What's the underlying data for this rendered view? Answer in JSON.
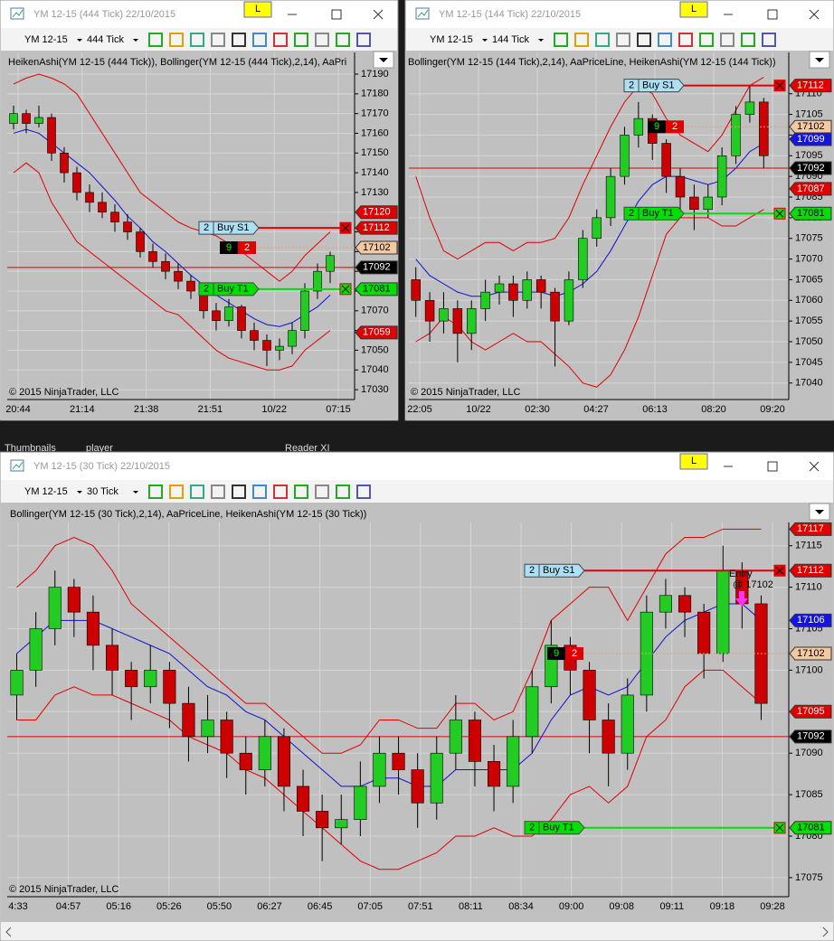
{
  "windows": [
    {
      "title": "YM 12-15 (444 Tick)  22/10/2015",
      "badge": "L",
      "instrument": "YM 12-15",
      "interval": "444 Tick",
      "indicators": "HeikenAshi(YM 12-15 (444 Tick)), Bollinger(YM 12-15 (444 Tick),2,14), AaPri",
      "ylim": [
        17025,
        17201
      ],
      "yticks": [
        17030,
        17040,
        17050,
        17060,
        17070,
        17080,
        17090,
        17100,
        17110,
        17120,
        17130,
        17140,
        17150,
        17160,
        17170,
        17180,
        17190
      ],
      "times": [
        "20:44",
        "21:14",
        "21:38",
        "21:51",
        "10/22",
        "07:15"
      ],
      "copyright": "© 2015 NinjaTrader, LLC",
      "candles": [
        [
          17165,
          17174,
          17162,
          17170
        ],
        [
          17170,
          17172,
          17160,
          17165
        ],
        [
          17165,
          17174,
          17163,
          17168
        ],
        [
          17168,
          17170,
          17146,
          17150
        ],
        [
          17150,
          17153,
          17135,
          17140
        ],
        [
          17140,
          17143,
          17126,
          17130
        ],
        [
          17130,
          17134,
          17120,
          17125
        ],
        [
          17125,
          17130,
          17117,
          17120
        ],
        [
          17120,
          17124,
          17110,
          17115
        ],
        [
          17115,
          17119,
          17106,
          17110
        ],
        [
          17110,
          17112,
          17097,
          17100
        ],
        [
          17100,
          17104,
          17092,
          17095
        ],
        [
          17095,
          17099,
          17086,
          17090
        ],
        [
          17090,
          17094,
          17081,
          17085
        ],
        [
          17085,
          17088,
          17076,
          17080
        ],
        [
          17080,
          17082,
          17066,
          17070
        ],
        [
          17070,
          17074,
          17060,
          17065
        ],
        [
          17065,
          17076,
          17062,
          17072
        ],
        [
          17072,
          17073,
          17056,
          17060
        ],
        [
          17060,
          17064,
          17050,
          17055
        ],
        [
          17055,
          17058,
          17042,
          17050
        ],
        [
          17050,
          17056,
          17045,
          17052
        ],
        [
          17052,
          17064,
          17048,
          17060
        ],
        [
          17060,
          17084,
          17056,
          17080
        ],
        [
          17080,
          17094,
          17076,
          17090
        ],
        [
          17090,
          17100,
          17084,
          17098
        ]
      ],
      "upper": [
        17185,
        17188,
        17190,
        17188,
        17185,
        17180,
        17170,
        17160,
        17150,
        17140,
        17130,
        17125,
        17120,
        17115,
        17112,
        17110,
        17108,
        17104,
        17100,
        17095,
        17090,
        17085,
        17090,
        17098,
        17104,
        17110
      ],
      "middle": [
        17160,
        17162,
        17160,
        17155,
        17150,
        17145,
        17140,
        17133,
        17126,
        17118,
        17112,
        17105,
        17100,
        17094,
        17088,
        17083,
        17078,
        17074,
        17070,
        17066,
        17063,
        17062,
        17064,
        17068,
        17072,
        17078
      ],
      "lower": [
        17140,
        17145,
        17140,
        17125,
        17115,
        17105,
        17100,
        17095,
        17090,
        17085,
        17080,
        17075,
        17070,
        17068,
        17062,
        17056,
        17050,
        17046,
        17044,
        17042,
        17040,
        17040,
        17042,
        17050,
        17055,
        17060
      ],
      "tags": [
        {
          "value": 17120,
          "color": "red"
        },
        {
          "value": 17112,
          "color": "red"
        },
        {
          "value": 17102,
          "color": "tan"
        },
        {
          "value": 17092,
          "color": "black"
        },
        {
          "value": 17081,
          "color": "green"
        },
        {
          "value": 17059,
          "color": "red"
        }
      ],
      "orders": [
        {
          "qty": 2,
          "label": "Buy S1",
          "price": 17112
        },
        {
          "qty": 2,
          "label": "Buy T1",
          "price": 17081
        }
      ],
      "entry": {
        "qty": 9,
        "count": 2,
        "price": 17102
      },
      "price_line": 17092
    },
    {
      "title": "YM 12-15 (144 Tick)  22/10/2015",
      "badge": "L",
      "instrument": "YM 12-15",
      "interval": "144 Tick",
      "indicators": "Bollinger(YM 12-15 (144 Tick),2,14), AaPriceLine, HeikenAshi(YM 12-15 (144 Tick))",
      "ylim": [
        17036,
        17120
      ],
      "yticks": [
        17040,
        17045,
        17050,
        17055,
        17060,
        17065,
        17070,
        17075,
        17080,
        17085,
        17090,
        17095,
        17100,
        17105,
        17110
      ],
      "times": [
        "22:05",
        "10/22",
        "02:30",
        "04:27",
        "06:13",
        "08:20",
        "09:20"
      ],
      "copyright": "© 2015 NinjaTrader, LLC",
      "candles": [
        [
          17065,
          17068,
          17056,
          17060
        ],
        [
          17060,
          17062,
          17050,
          17055
        ],
        [
          17055,
          17062,
          17052,
          17058
        ],
        [
          17058,
          17060,
          17045,
          17052
        ],
        [
          17052,
          17060,
          17048,
          17058
        ],
        [
          17058,
          17065,
          17055,
          17062
        ],
        [
          17062,
          17066,
          17059,
          17064
        ],
        [
          17064,
          17066,
          17056,
          17060
        ],
        [
          17060,
          17067,
          17058,
          17065
        ],
        [
          17065,
          17066,
          17058,
          17062
        ],
        [
          17062,
          17063,
          17044,
          17055
        ],
        [
          17055,
          17067,
          17054,
          17065
        ],
        [
          17065,
          17077,
          17063,
          17075
        ],
        [
          17075,
          17082,
          17073,
          17080
        ],
        [
          17080,
          17092,
          17078,
          17090
        ],
        [
          17090,
          17102,
          17088,
          17100
        ],
        [
          17100,
          17108,
          17097,
          17104
        ],
        [
          17104,
          17105,
          17094,
          17098
        ],
        [
          17098,
          17099,
          17086,
          17090
        ],
        [
          17090,
          17092,
          17080,
          17085
        ],
        [
          17085,
          17088,
          17077,
          17082
        ],
        [
          17082,
          17088,
          17080,
          17085
        ],
        [
          17085,
          17097,
          17083,
          17095
        ],
        [
          17095,
          17107,
          17093,
          17105
        ],
        [
          17105,
          17112,
          17103,
          17108
        ],
        [
          17108,
          17109,
          17092,
          17095
        ]
      ],
      "upper": [
        17090,
        17080,
        17072,
        17070,
        17072,
        17074,
        17074,
        17072,
        17074,
        17074,
        17075,
        17080,
        17088,
        17095,
        17102,
        17108,
        17112,
        17110,
        17104,
        17100,
        17098,
        17096,
        17100,
        17106,
        17112,
        17114
      ],
      "middle": [
        17070,
        17066,
        17064,
        17062,
        17061,
        17061,
        17062,
        17062,
        17062,
        17062,
        17061,
        17062,
        17064,
        17067,
        17072,
        17078,
        17084,
        17088,
        17090,
        17090,
        17089,
        17088,
        17089,
        17092,
        17096,
        17098
      ],
      "lower": [
        17050,
        17052,
        17056,
        17054,
        17050,
        17048,
        17050,
        17052,
        17050,
        17050,
        17047,
        17044,
        17040,
        17039,
        17042,
        17048,
        17056,
        17066,
        17076,
        17080,
        17080,
        17080,
        17078,
        17078,
        17080,
        17082
      ],
      "tags": [
        {
          "value": 17112,
          "color": "red"
        },
        {
          "value": 17102,
          "color": "tan"
        },
        {
          "value": 17099,
          "color": "blue"
        },
        {
          "value": 17092,
          "color": "black"
        },
        {
          "value": 17087,
          "color": "red"
        },
        {
          "value": 17081,
          "color": "green"
        }
      ],
      "orders": [
        {
          "qty": 2,
          "label": "Buy S1",
          "price": 17112
        },
        {
          "qty": 2,
          "label": "Buy T1",
          "price": 17081
        }
      ],
      "entry": {
        "qty": 9,
        "count": 2,
        "price": 17102
      },
      "price_line": 17092
    },
    {
      "title": "YM 12-15 (30 Tick)  22/10/2015",
      "badge": "L",
      "instrument": "YM 12-15",
      "interval": "30 Tick",
      "indicators": "Bollinger(YM 12-15 (30 Tick),2,14), AaPriceLine, HeikenAshi(YM 12-15 (30 Tick))",
      "ylim": [
        17072.7,
        17117.8
      ],
      "yticks": [
        17075,
        17080,
        17085,
        17090,
        17095,
        17100,
        17105,
        17110,
        17115
      ],
      "times": [
        "4:33",
        "04:57",
        "05:16",
        "05:26",
        "05:50",
        "06:27",
        "06:45",
        "07:05",
        "07:51",
        "08:11",
        "08:34",
        "09:00",
        "09:08",
        "09:11",
        "09:18",
        "09:28"
      ],
      "copyright": "© 2015 NinjaTrader, LLC",
      "candles": [
        [
          17097,
          17102,
          17094,
          17100
        ],
        [
          17100,
          17107,
          17098,
          17105
        ],
        [
          17105,
          17112,
          17103,
          17110
        ],
        [
          17110,
          17111,
          17104,
          17107
        ],
        [
          17107,
          17109,
          17100,
          17103
        ],
        [
          17103,
          17105,
          17097,
          17100
        ],
        [
          17100,
          17101,
          17094,
          17098
        ],
        [
          17098,
          17103,
          17096,
          17100
        ],
        [
          17100,
          17101,
          17093,
          17096
        ],
        [
          17096,
          17098,
          17089,
          17092
        ],
        [
          17092,
          17097,
          17090,
          17094
        ],
        [
          17094,
          17095,
          17087,
          17090
        ],
        [
          17090,
          17092,
          17085,
          17088
        ],
        [
          17088,
          17094,
          17086,
          17092
        ],
        [
          17092,
          17093,
          17083,
          17086
        ],
        [
          17086,
          17088,
          17080,
          17083
        ],
        [
          17083,
          17085,
          17077,
          17081
        ],
        [
          17081,
          17085,
          17079,
          17082
        ],
        [
          17082,
          17089,
          17080,
          17086
        ],
        [
          17086,
          17092,
          17084,
          17090
        ],
        [
          17090,
          17092,
          17085,
          17088
        ],
        [
          17088,
          17090,
          17081,
          17084
        ],
        [
          17084,
          17092,
          17082,
          17090
        ],
        [
          17090,
          17097,
          17088,
          17094
        ],
        [
          17094,
          17095,
          17086,
          17089
        ],
        [
          17089,
          17091,
          17083,
          17086
        ],
        [
          17086,
          17094,
          17084,
          17092
        ],
        [
          17092,
          17100,
          17090,
          17098
        ],
        [
          17098,
          17106,
          17096,
          17103
        ],
        [
          17103,
          17104,
          17097,
          17100
        ],
        [
          17100,
          17101,
          17090,
          17094
        ],
        [
          17094,
          17096,
          17086,
          17090
        ],
        [
          17090,
          17099,
          17088,
          17097
        ],
        [
          17097,
          17109,
          17095,
          17107
        ],
        [
          17107,
          17111,
          17105,
          17109
        ],
        [
          17109,
          17110,
          17104,
          17107
        ],
        [
          17107,
          17108,
          17099,
          17102
        ],
        [
          17102,
          17115,
          17101,
          17112
        ],
        [
          17112,
          17113,
          17105,
          17108
        ],
        [
          17108,
          17109,
          17094,
          17096
        ]
      ],
      "upper": [
        17110,
        17112,
        17115,
        17116,
        17115,
        17112,
        17108,
        17106,
        17104,
        17102,
        17100,
        17098,
        17096,
        17096,
        17094,
        17092,
        17090,
        17090,
        17091,
        17094,
        17094,
        17093,
        17093,
        17096,
        17096,
        17094,
        17095,
        17100,
        17106,
        17108,
        17110,
        17110,
        17106,
        17110,
        17114,
        17116,
        17116,
        17117,
        17117,
        17117
      ],
      "middle": [
        17102,
        17104,
        17106,
        17106,
        17106,
        17105,
        17104,
        17103,
        17102,
        17100,
        17098,
        17097,
        17095,
        17094,
        17092,
        17090,
        17088,
        17086,
        17086,
        17087,
        17087,
        17086,
        17086,
        17088,
        17088,
        17088,
        17088,
        17090,
        17094,
        17097,
        17098,
        17097,
        17098,
        17101,
        17104,
        17106,
        17107,
        17108,
        17108,
        17106
      ],
      "lower": [
        17094,
        17094,
        17097,
        17098,
        17097,
        17097,
        17096,
        17095,
        17094,
        17092,
        17091,
        17090,
        17088,
        17087,
        17085,
        17083,
        17081,
        17079,
        17077,
        17076,
        17076,
        17077,
        17078,
        17080,
        17080,
        17081,
        17080,
        17080,
        17082,
        17085,
        17086,
        17084,
        17086,
        17092,
        17094,
        17098,
        17100,
        17100,
        17098,
        17096
      ],
      "tags": [
        {
          "value": 17117,
          "color": "red"
        },
        {
          "value": 17112,
          "color": "red"
        },
        {
          "value": 17106,
          "color": "blue"
        },
        {
          "value": 17102,
          "color": "tan"
        },
        {
          "value": 17095,
          "color": "red"
        },
        {
          "value": 17092,
          "color": "black"
        },
        {
          "value": 17081,
          "color": "green"
        }
      ],
      "orders": [
        {
          "qty": 2,
          "label": "Buy S1",
          "price": 17112
        },
        {
          "qty": 2,
          "label": "Buy T1",
          "price": 17081
        }
      ],
      "entry": {
        "qty": 9,
        "count": 2,
        "price": 17102
      },
      "price_line": 17092,
      "annotation": [
        "Entry",
        "@ 17102"
      ]
    }
  ],
  "taskbar": [
    "Thumbnails",
    "player",
    "Reader XI"
  ]
}
